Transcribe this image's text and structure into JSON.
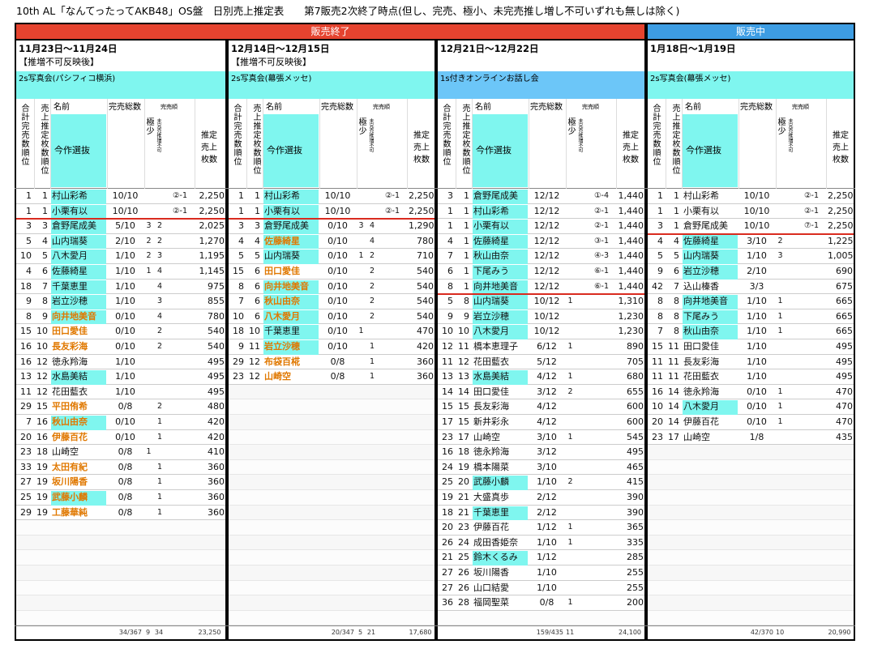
{
  "title": "10th AL「なんてったってAKB48」OS盤　日別売上推定表　　第7販売2次終了時点(但し、完売、極小、未完売推し増し不可いずれも無しは除く)",
  "status": [
    {
      "label": "販売終了",
      "span": 3,
      "color": "#e5432f"
    },
    {
      "label": "販売中",
      "span": 1,
      "color": "#3d9de3"
    }
  ],
  "selection_label": "今作選抜",
  "columns": [
    "合計完売数順位",
    "売上推定枚数順位",
    "名前",
    "完売総数",
    "極少",
    "完売順",
    "未完売推増不可",
    "推定売上枚数"
  ],
  "panels": [
    {
      "date": "11月23日〜11月24日",
      "note": "【推増不可反映後】",
      "event": "2s写真会(パシフィコ横浜)",
      "event_color": "#7ff6ef",
      "divider_after": 2,
      "rows": [
        {
          "cells": [
            "1",
            "1",
            "村山彩希",
            "10/10",
            null,
            null,
            "②-1",
            "2,250"
          ],
          "selected": true
        },
        {
          "cells": [
            "1",
            "1",
            "小栗有以",
            "10/10",
            null,
            null,
            "②-1",
            "2,250"
          ],
          "selected": true
        },
        {
          "cells": [
            "3",
            "3",
            "倉野尾成美",
            "5/10",
            "3",
            "2",
            null,
            "2,025"
          ],
          "selected": true
        },
        {
          "cells": [
            "5",
            "4",
            "山内瑞葵",
            "2/10",
            "2",
            "2",
            null,
            "1,270"
          ],
          "selected": true
        },
        {
          "cells": [
            "10",
            "5",
            "八木愛月",
            "1/10",
            "2",
            "3",
            null,
            "1,195"
          ],
          "selected": true
        },
        {
          "cells": [
            "4",
            "6",
            "佐藤綺星",
            "1/10",
            "1",
            "4",
            null,
            "1,145"
          ],
          "selected": true
        },
        {
          "cells": [
            "18",
            "7",
            "千葉恵里",
            "1/10",
            null,
            "4",
            null,
            "975"
          ],
          "selected": true
        },
        {
          "cells": [
            "9",
            "8",
            "岩立沙穂",
            "1/10",
            null,
            "3",
            null,
            "855"
          ],
          "selected": true
        },
        {
          "cells": [
            "8",
            "9",
            "向井地美音",
            "0/10",
            null,
            "4",
            null,
            "780"
          ],
          "selected": true,
          "name_color": "#e07800"
        },
        {
          "cells": [
            "15",
            "10",
            "田口愛佳",
            "0/10",
            null,
            "2",
            null,
            "540"
          ],
          "name_color": "#e07800"
        },
        {
          "cells": [
            "16",
            "10",
            "長友彩海",
            "0/10",
            null,
            "2",
            null,
            "540"
          ],
          "name_color": "#e07800"
        },
        {
          "cells": [
            "16",
            "12",
            "徳永羚海",
            "1/10",
            null,
            null,
            null,
            "495"
          ]
        },
        {
          "cells": [
            "13",
            "12",
            "水島美結",
            "1/10",
            null,
            null,
            null,
            "495"
          ],
          "selected": true
        },
        {
          "cells": [
            "11",
            "12",
            "花田藍衣",
            "1/10",
            null,
            null,
            null,
            "495"
          ]
        },
        {
          "cells": [
            "29",
            "15",
            "平田侑希",
            "0/8",
            null,
            "2",
            null,
            "480"
          ],
          "name_color": "#e07800"
        },
        {
          "cells": [
            "7",
            "16",
            "秋山由奈",
            "0/10",
            null,
            "1",
            null,
            "420"
          ],
          "selected": true,
          "name_color": "#e07800"
        },
        {
          "cells": [
            "20",
            "16",
            "伊藤百花",
            "0/10",
            null,
            "1",
            null,
            "420"
          ],
          "name_color": "#e07800"
        },
        {
          "cells": [
            "23",
            "18",
            "山崎空",
            "0/8",
            "1",
            null,
            null,
            "410"
          ]
        },
        {
          "cells": [
            "33",
            "19",
            "太田有紀",
            "0/8",
            null,
            "1",
            null,
            "360"
          ],
          "name_color": "#e07800"
        },
        {
          "cells": [
            "27",
            "19",
            "坂川陽香",
            "0/8",
            null,
            "1",
            null,
            "360"
          ],
          "name_color": "#e07800"
        },
        {
          "cells": [
            "25",
            "19",
            "武藤小麟",
            "0/8",
            null,
            "1",
            null,
            "360"
          ],
          "selected": true,
          "name_color": "#e07800"
        },
        {
          "cells": [
            "29",
            "19",
            "工藤華純",
            "0/8",
            null,
            "1",
            null,
            "360"
          ],
          "name_color": "#e07800"
        }
      ],
      "totals": [
        null,
        null,
        null,
        "34/367",
        "9",
        "34",
        null,
        "23,250"
      ]
    },
    {
      "date": "12月14日〜12月15日",
      "note": "【推増不可反映後】",
      "event": "2s写真会(幕張メッセ)",
      "event_color": "#7ff6ef",
      "divider_after": 2,
      "rows": [
        {
          "cells": [
            "1",
            "1",
            "村山彩希",
            "10/10",
            null,
            null,
            "②-1",
            "2,250"
          ],
          "selected": true
        },
        {
          "cells": [
            "1",
            "1",
            "小栗有以",
            "10/10",
            null,
            null,
            "②-1",
            "2,250"
          ],
          "selected": true
        },
        {
          "cells": [
            "3",
            "3",
            "倉野尾成美",
            "0/10",
            "3",
            "4",
            null,
            "1,290"
          ],
          "selected": true
        },
        {
          "cells": [
            "4",
            "4",
            "佐藤綺星",
            "0/10",
            null,
            "4",
            null,
            "780"
          ],
          "selected": true,
          "name_color": "#e07800"
        },
        {
          "cells": [
            "5",
            "5",
            "山内瑞葵",
            "0/10",
            "1",
            "2",
            null,
            "710"
          ],
          "selected": true
        },
        {
          "cells": [
            "15",
            "6",
            "田口愛佳",
            "0/10",
            null,
            "2",
            null,
            "540"
          ],
          "name_color": "#e07800"
        },
        {
          "cells": [
            "8",
            "6",
            "向井地美音",
            "0/10",
            null,
            "2",
            null,
            "540"
          ],
          "selected": true,
          "name_color": "#e07800"
        },
        {
          "cells": [
            "7",
            "6",
            "秋山由奈",
            "0/10",
            null,
            "2",
            null,
            "540"
          ],
          "selected": true,
          "name_color": "#e07800"
        },
        {
          "cells": [
            "10",
            "6",
            "八木愛月",
            "0/10",
            null,
            "2",
            null,
            "540"
          ],
          "selected": true,
          "name_color": "#e07800"
        },
        {
          "cells": [
            "18",
            "10",
            "千葉恵里",
            "0/10",
            "1",
            null,
            null,
            "470"
          ],
          "selected": true
        },
        {
          "cells": [
            "9",
            "11",
            "岩立沙穂",
            "0/10",
            null,
            "1",
            null,
            "420"
          ],
          "selected": true,
          "name_color": "#e07800"
        },
        {
          "cells": [
            "29",
            "12",
            "布袋百椛",
            "0/8",
            null,
            "1",
            null,
            "360"
          ],
          "name_color": "#e07800"
        },
        {
          "cells": [
            "23",
            "12",
            "山崎空",
            "0/8",
            null,
            "1",
            null,
            "360"
          ],
          "name_color": "#e07800"
        }
      ],
      "totals": [
        null,
        null,
        null,
        "20/347",
        "5",
        "21",
        null,
        "17,680"
      ]
    },
    {
      "date": "12月21日〜12月22日",
      "event": "1s付きオンラインお話し会",
      "event_color": "#6cc6f8",
      "divider_after": 7,
      "rows": [
        {
          "cells": [
            "3",
            "1",
            "倉野尾成美",
            "12/12",
            null,
            null,
            "①-4",
            "1,440"
          ],
          "selected": true
        },
        {
          "cells": [
            "1",
            "1",
            "村山彩希",
            "12/12",
            null,
            null,
            "②-1",
            "1,440"
          ],
          "selected": true
        },
        {
          "cells": [
            "1",
            "1",
            "小栗有以",
            "12/12",
            null,
            null,
            "②-1",
            "1,440"
          ],
          "selected": true
        },
        {
          "cells": [
            "4",
            "1",
            "佐藤綺星",
            "12/12",
            null,
            null,
            "③-1",
            "1,440"
          ],
          "selected": true
        },
        {
          "cells": [
            "7",
            "1",
            "秋山由奈",
            "12/12",
            null,
            null,
            "④-3",
            "1,440"
          ],
          "selected": true
        },
        {
          "cells": [
            "6",
            "1",
            "下尾みう",
            "12/12",
            null,
            null,
            "⑥-1",
            "1,440"
          ],
          "selected": true
        },
        {
          "cells": [
            "8",
            "1",
            "向井地美音",
            "12/12",
            null,
            null,
            "⑥-1",
            "1,440"
          ],
          "selected": true
        },
        {
          "cells": [
            "5",
            "8",
            "山内瑞葵",
            "10/12",
            "1",
            null,
            null,
            "1,310"
          ],
          "selected": true
        },
        {
          "cells": [
            "9",
            "9",
            "岩立沙穂",
            "10/12",
            null,
            null,
            null,
            "1,230"
          ],
          "selected": true
        },
        {
          "cells": [
            "10",
            "10",
            "八木愛月",
            "10/12",
            null,
            null,
            null,
            "1,230"
          ],
          "selected": true
        },
        {
          "cells": [
            "12",
            "11",
            "橋本恵理子",
            "6/12",
            "1",
            null,
            null,
            "890"
          ]
        },
        {
          "cells": [
            "11",
            "12",
            "花田藍衣",
            "5/12",
            null,
            null,
            null,
            "705"
          ]
        },
        {
          "cells": [
            "13",
            "13",
            "水島美結",
            "4/12",
            "1",
            null,
            null,
            "680"
          ],
          "selected": true
        },
        {
          "cells": [
            "14",
            "14",
            "田口愛佳",
            "3/12",
            "2",
            null,
            null,
            "655"
          ]
        },
        {
          "cells": [
            "15",
            "15",
            "長友彩海",
            "4/12",
            null,
            null,
            null,
            "600"
          ]
        },
        {
          "cells": [
            "17",
            "15",
            "新井彩永",
            "4/12",
            null,
            null,
            null,
            "600"
          ]
        },
        {
          "cells": [
            "23",
            "17",
            "山崎空",
            "3/10",
            "1",
            null,
            null,
            "545"
          ]
        },
        {
          "cells": [
            "16",
            "18",
            "徳永羚海",
            "3/12",
            null,
            null,
            null,
            "495"
          ]
        },
        {
          "cells": [
            "24",
            "19",
            "橋本陽菜",
            "3/10",
            null,
            null,
            null,
            "465"
          ]
        },
        {
          "cells": [
            "25",
            "20",
            "武藤小麟",
            "1/10",
            "2",
            null,
            null,
            "415"
          ],
          "selected": true
        },
        {
          "cells": [
            "19",
            "21",
            "大盛真歩",
            "2/12",
            null,
            null,
            null,
            "390"
          ]
        },
        {
          "cells": [
            "18",
            "21",
            "千葉恵里",
            "2/12",
            null,
            null,
            null,
            "390"
          ],
          "selected": true
        },
        {
          "cells": [
            "20",
            "23",
            "伊藤百花",
            "1/12",
            "1",
            null,
            null,
            "365"
          ]
        },
        {
          "cells": [
            "26",
            "24",
            "成田香姫奈",
            "1/10",
            "1",
            null,
            null,
            "335"
          ]
        },
        {
          "cells": [
            "21",
            "25",
            "鈴木くるみ",
            "1/12",
            null,
            null,
            null,
            "285"
          ],
          "selected": true
        },
        {
          "cells": [
            "27",
            "26",
            "坂川陽香",
            "1/10",
            null,
            null,
            null,
            "255"
          ]
        },
        {
          "cells": [
            "27",
            "26",
            "山口結愛",
            "1/10",
            null,
            null,
            null,
            "255"
          ]
        },
        {
          "cells": [
            "36",
            "28",
            "福岡聖菜",
            "0/8",
            "1",
            null,
            null,
            "200"
          ]
        }
      ],
      "totals": [
        null,
        null,
        null,
        "159/435",
        "11",
        null,
        null,
        "24,100"
      ]
    },
    {
      "date": "1月18日〜1月19日",
      "event": "2s写真会(幕張メッセ)",
      "event_color": "#7ff6ef",
      "divider_after": 3,
      "rows": [
        {
          "cells": [
            "1",
            "1",
            "村山彩希",
            "10/10",
            null,
            null,
            "②-1",
            "2,250"
          ]
        },
        {
          "cells": [
            "1",
            "1",
            "小栗有以",
            "10/10",
            null,
            null,
            "②-1",
            "2,250"
          ]
        },
        {
          "cells": [
            "3",
            "1",
            "倉野尾成美",
            "10/10",
            null,
            null,
            "⑦-1",
            "2,250"
          ]
        },
        {
          "cells": [
            "4",
            "4",
            "佐藤綺星",
            "3/10",
            "2",
            null,
            null,
            "1,225"
          ],
          "selected": true
        },
        {
          "cells": [
            "5",
            "5",
            "山内瑞葵",
            "1/10",
            "3",
            null,
            null,
            "1,005"
          ],
          "selected": true
        },
        {
          "cells": [
            "9",
            "6",
            "岩立沙穂",
            "2/10",
            null,
            null,
            null,
            "690"
          ],
          "selected": true
        },
        {
          "cells": [
            "42",
            "7",
            "込山榛香",
            "3/3",
            null,
            null,
            null,
            "675"
          ]
        },
        {
          "cells": [
            "8",
            "8",
            "向井地美音",
            "1/10",
            "1",
            null,
            null,
            "665"
          ],
          "selected": true
        },
        {
          "cells": [
            "8",
            "8",
            "下尾みう",
            "1/10",
            "1",
            null,
            null,
            "665"
          ],
          "selected": true
        },
        {
          "cells": [
            "7",
            "8",
            "秋山由奈",
            "1/10",
            "1",
            null,
            null,
            "665"
          ],
          "selected": true
        },
        {
          "cells": [
            "15",
            "11",
            "田口愛佳",
            "1/10",
            null,
            null,
            null,
            "495"
          ]
        },
        {
          "cells": [
            "11",
            "11",
            "長友彩海",
            "1/10",
            null,
            null,
            null,
            "495"
          ]
        },
        {
          "cells": [
            "11",
            "11",
            "花田藍衣",
            "1/10",
            null,
            null,
            null,
            "495"
          ]
        },
        {
          "cells": [
            "16",
            "14",
            "徳永羚海",
            "0/10",
            "1",
            null,
            null,
            "470"
          ]
        },
        {
          "cells": [
            "10",
            "14",
            "八木愛月",
            "0/10",
            "1",
            null,
            null,
            "470"
          ],
          "selected": true
        },
        {
          "cells": [
            "20",
            "14",
            "伊藤百花",
            "0/10",
            "1",
            null,
            null,
            "470"
          ]
        },
        {
          "cells": [
            "23",
            "17",
            "山崎空",
            "1/8",
            null,
            null,
            null,
            "435"
          ]
        }
      ],
      "totals": [
        null,
        null,
        null,
        "42/370",
        "10",
        null,
        null,
        "20,990"
      ]
    }
  ]
}
